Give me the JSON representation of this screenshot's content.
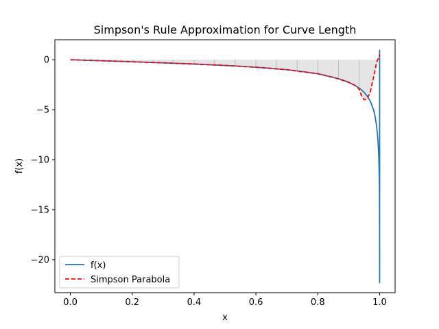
{
  "chart_data": {
    "type": "line",
    "title": "Simpson's Rule Approximation for Curve Length",
    "xlabel": "x",
    "ylabel": "f(x)",
    "xlim": [
      -0.05,
      1.05
    ],
    "ylim": [
      -23.3,
      2.0
    ],
    "xticks": [
      0.0,
      0.2,
      0.4,
      0.6,
      0.8,
      1.0
    ],
    "xtick_labels": [
      "0.0",
      "0.2",
      "0.4",
      "0.6",
      "0.8",
      "1.0"
    ],
    "yticks": [
      0,
      -5,
      -10,
      -15,
      -20
    ],
    "ytick_labels": [
      "0",
      "−5",
      "−10",
      "−15",
      "−20"
    ],
    "grid": false,
    "legend_position": "lower-left",
    "series": [
      {
        "name": "f(x)",
        "style": "solid",
        "color": "#1f77b4",
        "x": [
          0.0,
          0.05,
          0.1,
          0.15,
          0.2,
          0.25,
          0.3,
          0.35,
          0.4,
          0.45,
          0.5,
          0.55,
          0.6,
          0.65,
          0.7,
          0.75,
          0.8,
          0.85,
          0.88,
          0.9,
          0.92,
          0.94,
          0.95,
          0.96,
          0.97,
          0.98,
          0.985,
          0.99,
          0.993,
          0.995,
          0.997,
          0.998,
          0.999,
          0.9995,
          0.9997,
          0.9999,
          0.99995,
          1.0
        ],
        "y": [
          0.0,
          -0.05,
          -0.1,
          -0.15,
          -0.2,
          -0.26,
          -0.31,
          -0.37,
          -0.43,
          -0.5,
          -0.57,
          -0.65,
          -0.75,
          -0.86,
          -1.0,
          -1.18,
          -1.4,
          -1.76,
          -2.02,
          -2.26,
          -2.56,
          -2.98,
          -3.27,
          -3.64,
          -4.16,
          -5.0,
          -5.6,
          -6.6,
          -7.5,
          -8.3,
          -9.5,
          -10.6,
          -12.5,
          -14.5,
          -16.0,
          -19.0,
          -22.3,
          1.0
        ]
      },
      {
        "name": "Simpson Parabola",
        "style": "dashed",
        "color": "#ff0000",
        "x": [
          0.0,
          0.1,
          0.2,
          0.3,
          0.4,
          0.5,
          0.6,
          0.7,
          0.8,
          0.85,
          0.9,
          0.92,
          0.933,
          0.94,
          0.95,
          0.96,
          0.97,
          0.98,
          0.99,
          1.0
        ],
        "y": [
          0.0,
          -0.1,
          -0.2,
          -0.31,
          -0.43,
          -0.57,
          -0.75,
          -1.0,
          -1.4,
          -1.76,
          -2.26,
          -2.56,
          -2.9,
          -3.5,
          -4.0,
          -3.9,
          -3.2,
          -1.8,
          -0.3,
          0.5
        ]
      }
    ],
    "shaded_region": {
      "fill": "#d3d3d3",
      "opacity": 0.6,
      "x": [
        0.0,
        0.1,
        0.2,
        0.3,
        0.4,
        0.5,
        0.6,
        0.7,
        0.8,
        0.85,
        0.9,
        0.92,
        0.933,
        0.94,
        0.95,
        0.96,
        0.97,
        0.98,
        0.99,
        1.0
      ],
      "y": [
        0.0,
        -0.1,
        -0.2,
        -0.31,
        -0.43,
        -0.57,
        -0.75,
        -1.0,
        -1.4,
        -1.76,
        -2.26,
        -2.56,
        -2.9,
        -3.5,
        -4.0,
        -3.9,
        -3.2,
        -1.8,
        -0.3,
        0.5
      ],
      "baseline": 0,
      "segment_lines_x": [
        0.0,
        0.0667,
        0.1333,
        0.2,
        0.2667,
        0.3333,
        0.4,
        0.4667,
        0.5333,
        0.6,
        0.6667,
        0.7333,
        0.8,
        0.8667,
        0.9333,
        1.0
      ]
    }
  }
}
